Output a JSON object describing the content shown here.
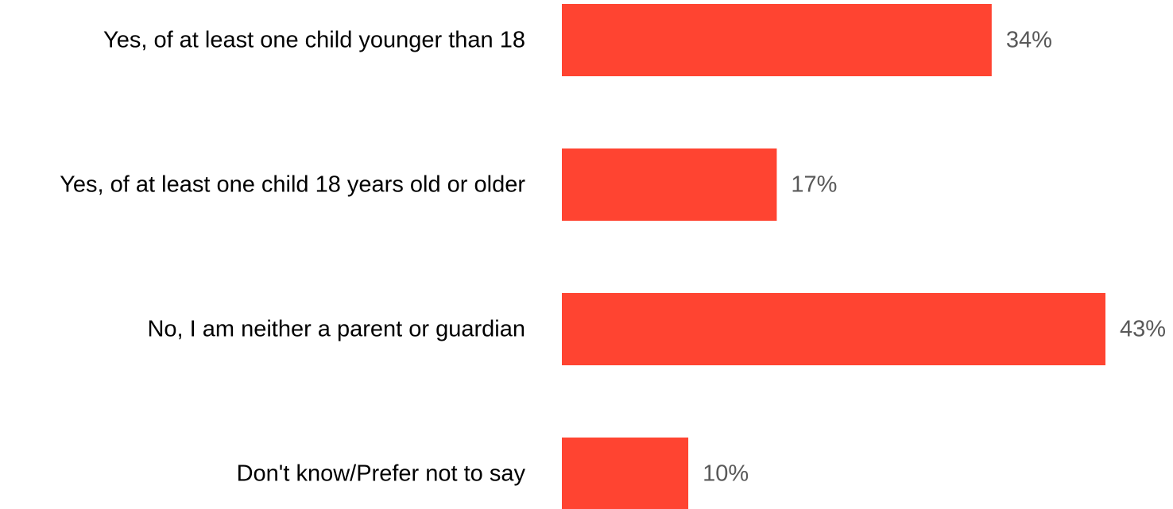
{
  "chart_data": {
    "type": "bar",
    "orientation": "horizontal",
    "categories": [
      "Yes, of at least one child younger than 18",
      "Yes, of at least one child 18 years old or older",
      "No, I am neither a parent or guardian",
      "Don't know/Prefer not to say"
    ],
    "values": [
      34,
      17,
      43,
      10
    ],
    "value_labels": [
      "34%",
      "17%",
      "43%",
      "10%"
    ],
    "unit": "%",
    "title": "",
    "xlabel": "",
    "ylabel": "",
    "xlim": [
      0,
      45.3
    ],
    "grid": false,
    "legend": "none",
    "bar_color": "#ff4431",
    "value_label_color": "#595959",
    "category_label_color": "#000000"
  }
}
